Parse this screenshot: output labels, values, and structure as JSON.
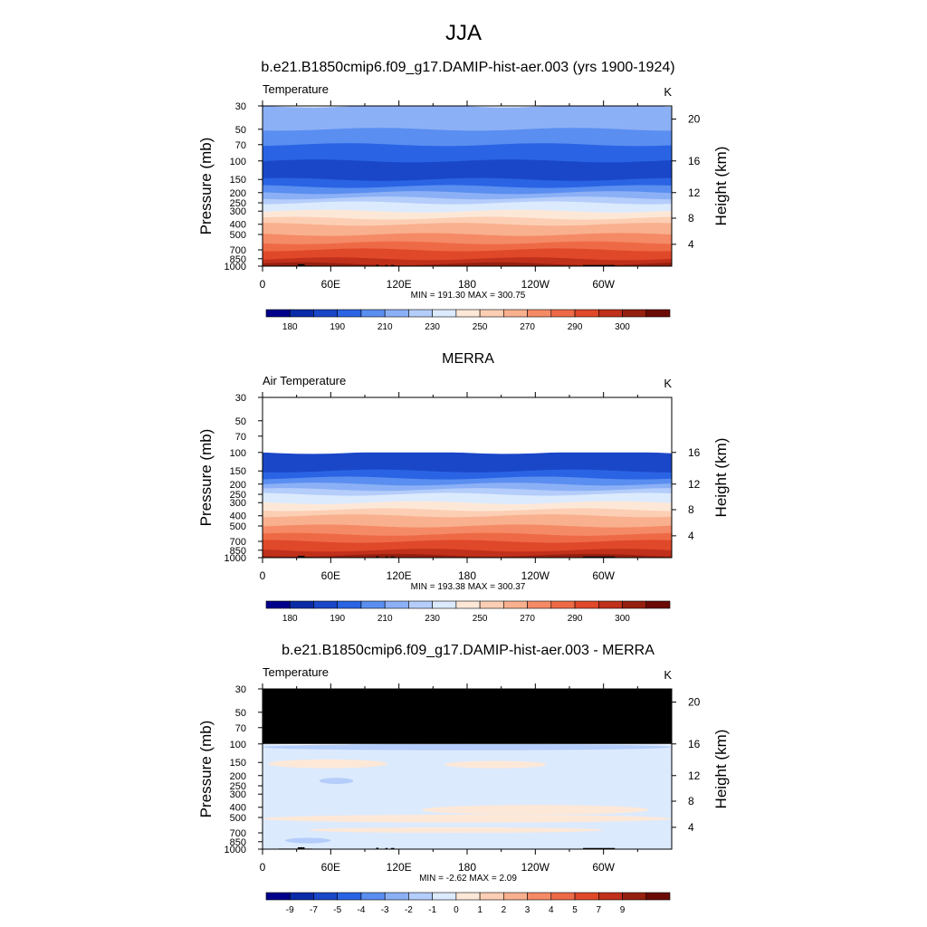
{
  "figure": {
    "title": "JJA"
  },
  "chart_data": [
    {
      "type": "heatmap",
      "title": "b.e21.B1850cmip6.f09_g17.DAMIP-hist-aer.003 (yrs 1900-1924)",
      "left_label": "Temperature",
      "units": "K",
      "ylabel": "Pressure (mb)",
      "ylabel_right": "Height (km)",
      "x_ticks": [
        "0",
        "60E",
        "120E",
        "180",
        "120W",
        "60W"
      ],
      "y_ticks": [
        "30",
        "50",
        "70",
        "100",
        "150",
        "200",
        "250",
        "300",
        "400",
        "500",
        "700",
        "850",
        "1000"
      ],
      "y_right_ticks": [
        "20",
        "16",
        "12",
        "8",
        "4"
      ],
      "stats": "MIN = 191.30  MAX = 300.75",
      "colorbar": {
        "labels": [
          "180",
          "190",
          "210",
          "230",
          "250",
          "270",
          "290",
          "300"
        ],
        "colors": [
          "#00008b",
          "#0a2ba8",
          "#1a47c8",
          "#2a64e4",
          "#5a8ef0",
          "#8cb0f6",
          "#b4cdfa",
          "#dceafe",
          "#fde8d8",
          "#fccfb4",
          "#f9b08e",
          "#f58a66",
          "#ee6a46",
          "#e0482a",
          "#c0301a",
          "#962010",
          "#6b0a05"
        ]
      },
      "profile": [
        {
          "p": 30,
          "level": 5
        },
        {
          "p": 50,
          "level": 4
        },
        {
          "p": 70,
          "level": 3
        },
        {
          "p": 100,
          "level": 2
        },
        {
          "p": 150,
          "level": 3
        },
        {
          "p": 175,
          "level": 4
        },
        {
          "p": 200,
          "level": 5
        },
        {
          "p": 225,
          "level": 6
        },
        {
          "p": 250,
          "level": 7
        },
        {
          "p": 300,
          "level": 8
        },
        {
          "p": 350,
          "level": 9
        },
        {
          "p": 400,
          "level": 10
        },
        {
          "p": 500,
          "level": 11
        },
        {
          "p": 600,
          "level": 12
        },
        {
          "p": 700,
          "level": 13
        },
        {
          "p": 850,
          "level": 14
        },
        {
          "p": 950,
          "level": 15
        }
      ],
      "masked_above": null,
      "topography": true
    },
    {
      "type": "heatmap",
      "title": "MERRA",
      "left_label": "Air Temperature",
      "units": "K",
      "ylabel": "Pressure (mb)",
      "ylabel_right": "Height (km)",
      "x_ticks": [
        "0",
        "60E",
        "120E",
        "180",
        "120W",
        "60W"
      ],
      "y_ticks": [
        "30",
        "50",
        "70",
        "100",
        "150",
        "200",
        "250",
        "300",
        "400",
        "500",
        "700",
        "850",
        "1000"
      ],
      "y_right_ticks": [
        "16",
        "12",
        "8",
        "4"
      ],
      "stats": "MIN = 193.38  MAX = 300.37",
      "colorbar": {
        "labels": [
          "180",
          "190",
          "210",
          "230",
          "250",
          "270",
          "290",
          "300"
        ],
        "colors": [
          "#00008b",
          "#0a2ba8",
          "#1a47c8",
          "#2a64e4",
          "#5a8ef0",
          "#8cb0f6",
          "#b4cdfa",
          "#dceafe",
          "#fde8d8",
          "#fccfb4",
          "#f9b08e",
          "#f58a66",
          "#ee6a46",
          "#e0482a",
          "#c0301a",
          "#962010",
          "#6b0a05"
        ]
      },
      "profile": [
        {
          "p": 100,
          "level": 2
        },
        {
          "p": 150,
          "level": 3
        },
        {
          "p": 175,
          "level": 4
        },
        {
          "p": 200,
          "level": 5
        },
        {
          "p": 225,
          "level": 6
        },
        {
          "p": 250,
          "level": 7
        },
        {
          "p": 300,
          "level": 8
        },
        {
          "p": 350,
          "level": 9
        },
        {
          "p": 400,
          "level": 10
        },
        {
          "p": 500,
          "level": 11
        },
        {
          "p": 600,
          "level": 12
        },
        {
          "p": 700,
          "level": 13
        },
        {
          "p": 850,
          "level": 14
        },
        {
          "p": 950,
          "level": 15
        }
      ],
      "masked_above": {
        "p": 100,
        "color": "#ffffff"
      },
      "topography": true
    },
    {
      "type": "heatmap",
      "title": "b.e21.B1850cmip6.f09_g17.DAMIP-hist-aer.003 - MERRA",
      "left_label": "Temperature",
      "units": "K",
      "ylabel": "Pressure (mb)",
      "ylabel_right": "Height (km)",
      "x_ticks": [
        "0",
        "60E",
        "120E",
        "180",
        "120W",
        "60W"
      ],
      "y_ticks": [
        "30",
        "50",
        "70",
        "100",
        "150",
        "200",
        "250",
        "300",
        "400",
        "500",
        "700",
        "850",
        "1000"
      ],
      "y_right_ticks": [
        "20",
        "16",
        "12",
        "8",
        "4"
      ],
      "stats": "MIN =  -2.62  MAX =   2.09",
      "colorbar": {
        "labels": [
          "-9",
          "-7",
          "-5",
          "-4",
          "-3",
          "-2",
          "-1",
          "0",
          "1",
          "2",
          "3",
          "4",
          "5",
          "7",
          "9"
        ],
        "colors": [
          "#00008b",
          "#0a2ba8",
          "#1a47c8",
          "#2a64e4",
          "#5a8ef0",
          "#8cb0f6",
          "#b4cdfa",
          "#dceafe",
          "#fde8d8",
          "#fccfb4",
          "#f9b08e",
          "#f58a66",
          "#ee6a46",
          "#e0482a",
          "#c0301a",
          "#962010",
          "#6b0a05"
        ]
      },
      "profile": [
        {
          "p": 100,
          "level": 7
        },
        {
          "p": 1000,
          "level": 7
        }
      ],
      "anomalies": [
        {
          "lon": [
            0,
            360
          ],
          "p": [
            100,
            115
          ],
          "level": 6
        },
        {
          "lon": [
            5,
            110
          ],
          "p": [
            140,
            170
          ],
          "level": 8
        },
        {
          "lon": [
            160,
            250
          ],
          "p": [
            145,
            170
          ],
          "level": 8
        },
        {
          "lon": [
            50,
            80
          ],
          "p": [
            210,
            240
          ],
          "level": 6
        },
        {
          "lon": [
            140,
            340
          ],
          "p": [
            380,
            470
          ],
          "level": 8
        },
        {
          "lon": [
            0,
            360
          ],
          "p": [
            470,
            560
          ],
          "level": 8
        },
        {
          "lon": [
            40,
            300
          ],
          "p": [
            620,
            700
          ],
          "level": 8
        },
        {
          "lon": [
            20,
            60
          ],
          "p": [
            780,
            880
          ],
          "level": 6
        }
      ],
      "masked_above": {
        "p": 100,
        "color": "#000000"
      },
      "topography": true
    }
  ]
}
